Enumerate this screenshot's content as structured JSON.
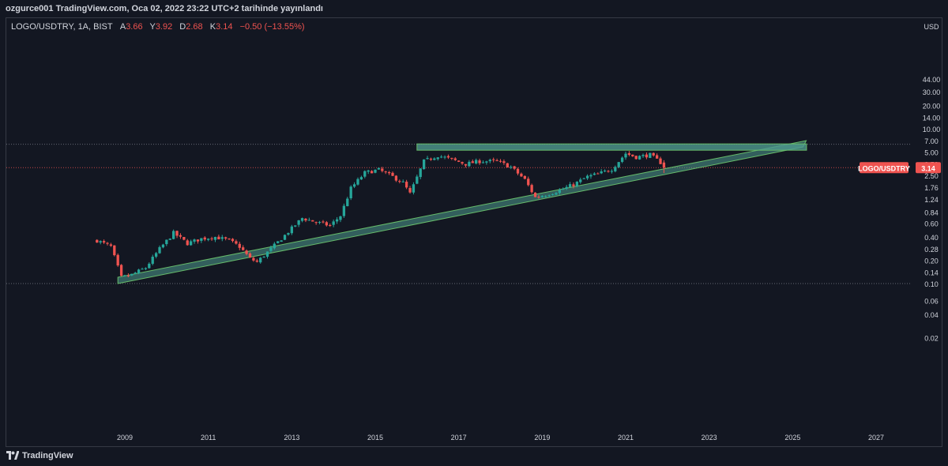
{
  "header": {
    "publish_line": "ozgurce001 TradingView.com, Oca 02, 2022 23:22 UTC+2 tarihinde yayınlandı"
  },
  "legend": {
    "symbol": "LOGO/USDTRY, 1A, BIST",
    "o_label": "A",
    "o_value": "3.66",
    "h_label": "Y",
    "h_value": "3.92",
    "l_label": "D",
    "l_value": "2.68",
    "c_label": "K",
    "c_value": "3.14",
    "change": "−0.50 (−13.55%)"
  },
  "footer": {
    "brand": "TradingView"
  },
  "colors": {
    "background": "#131722",
    "up": "#26a69a",
    "down": "#ef5350",
    "text": "#d1d4dc",
    "drawing": "#4f9a8e"
  },
  "chart_data": {
    "type": "candlestick",
    "symbol": "LOGO/USDTRY",
    "interval": "1A",
    "exchange": "BIST",
    "y_scale": "log",
    "currency": "USD",
    "last_price_label": "LOGO/USDTRY",
    "last_price": 3.14,
    "y_ticks": [
      44.0,
      30.0,
      20.0,
      14.0,
      10.0,
      7.0,
      5.0,
      3.5,
      2.5,
      1.76,
      1.24,
      0.84,
      0.6,
      0.4,
      0.28,
      0.2,
      0.14,
      0.1,
      0.06,
      0.04,
      0.02
    ],
    "y_tick_labels": [
      "44.00",
      "30.00",
      "20.00",
      "14.00",
      "10.00",
      "7.00",
      "5.00",
      "3.50",
      "2.50",
      "1.76",
      "1.24",
      "0.84",
      "0.60",
      "0.40",
      "0.28",
      "0.20",
      "0.14",
      "0.10",
      "0.06",
      "0.04",
      "0.02"
    ],
    "x_ticks": [
      "2009",
      "2011",
      "2013",
      "2015",
      "2017",
      "2019",
      "2021",
      "2023",
      "2025",
      "2027"
    ],
    "x_range": [
      "2007-12",
      "2027-12"
    ],
    "x_tick_dates": [
      "2009-01",
      "2011-01",
      "2013-01",
      "2015-01",
      "2017-01",
      "2019-01",
      "2021-01",
      "2023-01",
      "2025-01",
      "2027-01"
    ],
    "y_range": [
      0.02,
      44.0
    ],
    "horizontal_lines": [
      {
        "price": 6.3,
        "style": "dotted",
        "color": "#787b86"
      },
      {
        "price": 0.1,
        "style": "dotted",
        "color": "#787b86"
      },
      {
        "price": 3.14,
        "style": "dotted",
        "color": "#ef5350"
      }
    ],
    "drawings": [
      {
        "type": "rising-support-channel",
        "from": {
          "date": "2008-11",
          "price": 0.1
        },
        "to": {
          "date": "2025-04",
          "price": 5.3
        }
      },
      {
        "type": "horizontal-resistance-zone",
        "from": {
          "date": "2016-01",
          "price": 5.8
        },
        "to": {
          "date": "2025-05",
          "price": 5.8
        }
      }
    ],
    "path_points": [
      {
        "date": "2008-05",
        "price": 0.36
      },
      {
        "date": "2008-09",
        "price": 0.3
      },
      {
        "date": "2008-12",
        "price": 0.12
      },
      {
        "date": "2009-03",
        "price": 0.13
      },
      {
        "date": "2009-07",
        "price": 0.16
      },
      {
        "date": "2009-11",
        "price": 0.28
      },
      {
        "date": "2010-03",
        "price": 0.45
      },
      {
        "date": "2010-07",
        "price": 0.33
      },
      {
        "date": "2010-11",
        "price": 0.38
      },
      {
        "date": "2011-03",
        "price": 0.4
      },
      {
        "date": "2011-07",
        "price": 0.36
      },
      {
        "date": "2011-10",
        "price": 0.3
      },
      {
        "date": "2012-01",
        "price": 0.21
      },
      {
        "date": "2012-03",
        "price": 0.19
      },
      {
        "date": "2012-07",
        "price": 0.28
      },
      {
        "date": "2012-11",
        "price": 0.42
      },
      {
        "date": "2013-04",
        "price": 0.7
      },
      {
        "date": "2013-08",
        "price": 0.62
      },
      {
        "date": "2013-12",
        "price": 0.56
      },
      {
        "date": "2014-03",
        "price": 0.75
      },
      {
        "date": "2014-06",
        "price": 1.7
      },
      {
        "date": "2014-10",
        "price": 2.7
      },
      {
        "date": "2015-02",
        "price": 2.95
      },
      {
        "date": "2015-06",
        "price": 2.4
      },
      {
        "date": "2015-09",
        "price": 2.0
      },
      {
        "date": "2015-11",
        "price": 1.45
      },
      {
        "date": "2016-03",
        "price": 3.8
      },
      {
        "date": "2016-07",
        "price": 4.5
      },
      {
        "date": "2016-11",
        "price": 4.0
      },
      {
        "date": "2017-03",
        "price": 3.5
      },
      {
        "date": "2017-07",
        "price": 3.8
      },
      {
        "date": "2017-12",
        "price": 3.8
      },
      {
        "date": "2018-04",
        "price": 3.2
      },
      {
        "date": "2018-08",
        "price": 2.2
      },
      {
        "date": "2018-11",
        "price": 1.3
      },
      {
        "date": "2019-02",
        "price": 1.4
      },
      {
        "date": "2019-06",
        "price": 1.6
      },
      {
        "date": "2019-10",
        "price": 1.9
      },
      {
        "date": "2020-02",
        "price": 2.4
      },
      {
        "date": "2020-05",
        "price": 2.6
      },
      {
        "date": "2020-09",
        "price": 3.0
      },
      {
        "date": "2021-01",
        "price": 4.8
      },
      {
        "date": "2021-04",
        "price": 4.3
      },
      {
        "date": "2021-08",
        "price": 4.6
      },
      {
        "date": "2021-11",
        "price": 3.66
      },
      {
        "date": "2021-12",
        "price": 3.14
      }
    ]
  }
}
